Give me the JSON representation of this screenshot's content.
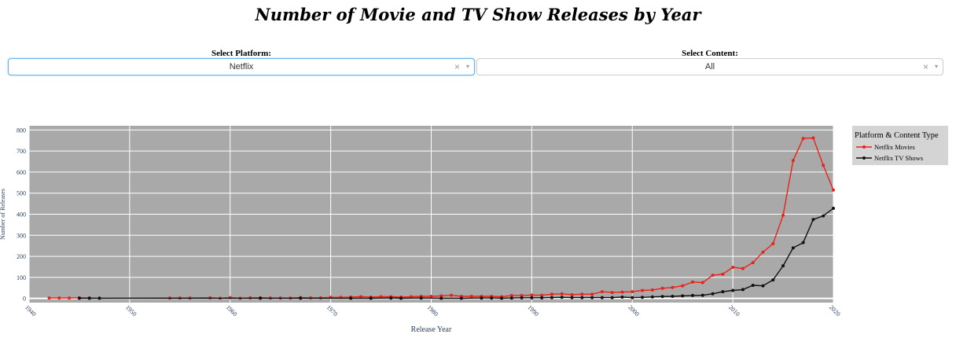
{
  "title": "Number of Movie and TV Show Releases by Year",
  "controls": {
    "platform": {
      "label": "Select Platform:",
      "value": "Netflix",
      "clear_icon": "×",
      "arrow_icon": "▾"
    },
    "content": {
      "label": "Select Content:",
      "value": "All",
      "clear_icon": "×",
      "arrow_icon": "▾"
    }
  },
  "colors": {
    "plot_bg": "#a9a9a9",
    "movies": "#e8231b",
    "tv": "#111111",
    "legend_bg": "#d4d4d4",
    "axis_text": "#2a3f5f"
  },
  "chart_data": {
    "type": "line",
    "title": "",
    "xlabel": "Release Year",
    "ylabel": "Number of Releases",
    "xlim": [
      1940,
      2020
    ],
    "ylim": [
      -20,
      820
    ],
    "xticks": [
      1940,
      1950,
      1960,
      1970,
      1980,
      1990,
      2000,
      2010,
      2020
    ],
    "yticks": [
      0,
      100,
      200,
      300,
      400,
      500,
      600,
      700,
      800
    ],
    "grid": true,
    "legend_title": "Platform & Content Type",
    "legend_position": "right",
    "series": [
      {
        "name": "Netflix Movies",
        "color": "#e8231b",
        "x": [
          1942,
          1943,
          1944,
          1945,
          1946,
          1947,
          1954,
          1955,
          1956,
          1958,
          1959,
          1960,
          1961,
          1962,
          1963,
          1964,
          1965,
          1966,
          1967,
          1968,
          1969,
          1970,
          1971,
          1972,
          1973,
          1974,
          1975,
          1976,
          1977,
          1978,
          1979,
          1980,
          1981,
          1982,
          1983,
          1984,
          1985,
          1986,
          1987,
          1988,
          1989,
          1990,
          1991,
          1992,
          1993,
          1994,
          1995,
          1996,
          1997,
          1998,
          1999,
          2000,
          2001,
          2002,
          2003,
          2004,
          2005,
          2006,
          2007,
          2008,
          2009,
          2010,
          2011,
          2012,
          2013,
          2014,
          2015,
          2016,
          2017,
          2018,
          2019,
          2020
        ],
        "y": [
          2,
          2,
          2,
          3,
          2,
          1,
          2,
          2,
          2,
          3,
          1,
          4,
          1,
          3,
          3,
          2,
          2,
          2,
          4,
          3,
          3,
          5,
          5,
          6,
          8,
          6,
          8,
          8,
          6,
          8,
          10,
          10,
          12,
          15,
          10,
          10,
          10,
          10,
          8,
          14,
          14,
          16,
          15,
          20,
          22,
          18,
          20,
          20,
          32,
          28,
          30,
          32,
          38,
          40,
          48,
          52,
          60,
          78,
          75,
          110,
          115,
          148,
          142,
          170,
          220,
          260,
          395,
          655,
          760,
          762,
          632,
          515
        ]
      },
      {
        "name": "Netflix TV Shows",
        "color": "#111111",
        "x": [
          1945,
          1946,
          1947,
          1963,
          1967,
          1972,
          1974,
          1976,
          1977,
          1979,
          1981,
          1983,
          1985,
          1986,
          1987,
          1988,
          1989,
          1990,
          1991,
          1992,
          1993,
          1994,
          1995,
          1996,
          1997,
          1998,
          1999,
          2000,
          2001,
          2002,
          2003,
          2004,
          2005,
          2006,
          2007,
          2008,
          2009,
          2010,
          2011,
          2012,
          2013,
          2014,
          2015,
          2016,
          2017,
          2018,
          2019,
          2020
        ],
        "y": [
          1,
          1,
          1,
          1,
          1,
          1,
          1,
          2,
          1,
          2,
          1,
          1,
          2,
          2,
          1,
          2,
          3,
          3,
          3,
          4,
          5,
          4,
          4,
          4,
          4,
          4,
          6,
          4,
          5,
          7,
          9,
          10,
          12,
          14,
          15,
          22,
          32,
          38,
          42,
          62,
          60,
          88,
          155,
          240,
          265,
          375,
          392,
          428
        ]
      }
    ]
  }
}
